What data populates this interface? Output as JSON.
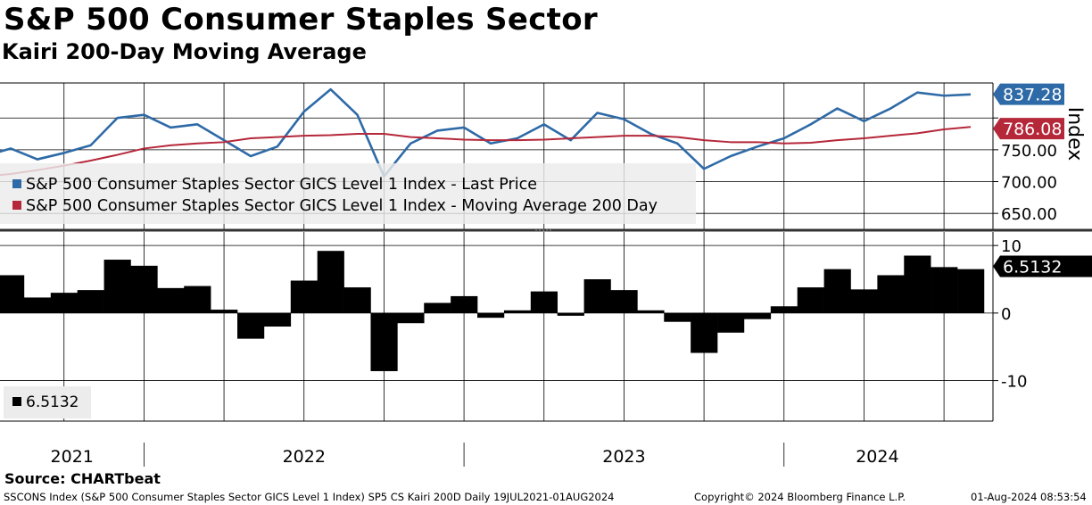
{
  "header": {
    "title": "S&P 500 Consumer Staples Sector",
    "subtitle": "Kairi 200-Day Moving Average"
  },
  "legend": {
    "price": "S&P 500 Consumer Staples Sector GICS Level 1 Index - Last Price",
    "ma": "S&P 500 Consumer Staples Sector GICS Level 1 Index - Moving Average 200 Day",
    "kairi": "6.5132"
  },
  "source": "Source: CHARTbeat",
  "footer": {
    "left": "SSCONS Index (S&P 500 Consumer Staples Sector GICS Level 1 Index) SP5 CS Kairi 200D  Daily 19JUL2021-01AUG2024",
    "center": "Copyright© 2024 Bloomberg Finance L.P.",
    "right": "01-Aug-2024 08:53:54"
  },
  "colors": {
    "price": "#2e6aa7",
    "ma": "#b5283a",
    "kairi": "#000000"
  },
  "chart_data": [
    {
      "type": "line",
      "ylabel": "Index",
      "ylim": [
        625,
        855
      ],
      "y_ticks": [
        "650.00",
        "700.00",
        "750.00"
      ],
      "x_labels": [
        "2021",
        "2022",
        "2023",
        "2024"
      ],
      "last_labels": {
        "price": "837.28",
        "ma": "786.08"
      },
      "x": [
        "2021-07",
        "2021-08",
        "2021-09",
        "2021-10",
        "2021-11",
        "2021-12",
        "2022-01",
        "2022-02",
        "2022-03",
        "2022-04",
        "2022-05",
        "2022-06",
        "2022-07",
        "2022-08",
        "2022-09",
        "2022-10",
        "2022-11",
        "2022-12",
        "2023-01",
        "2023-02",
        "2023-03",
        "2023-04",
        "2023-05",
        "2023-06",
        "2023-07",
        "2023-08",
        "2023-09",
        "2023-10",
        "2023-11",
        "2023-12",
        "2024-01",
        "2024-02",
        "2024-03",
        "2024-04",
        "2024-05",
        "2024-06",
        "2024-07",
        "2024-08"
      ],
      "series": [
        {
          "name": "S&P 500 Consumer Staples Sector GICS Level 1 Index - Last Price",
          "values": [
            740,
            752,
            735,
            745,
            757,
            800,
            805,
            785,
            790,
            765,
            740,
            755,
            810,
            845,
            805,
            708,
            760,
            780,
            785,
            760,
            768,
            790,
            765,
            808,
            798,
            775,
            760,
            720,
            740,
            755,
            768,
            790,
            815,
            795,
            815,
            840,
            835,
            837
          ]
        },
        {
          "name": "S&P 500 Consumer Staples Sector GICS Level 1 Index - Moving Average 200 Day",
          "values": [
            708,
            712,
            718,
            725,
            733,
            742,
            752,
            757,
            760,
            762,
            768,
            770,
            772,
            773,
            775,
            775,
            770,
            768,
            766,
            765,
            765,
            766,
            768,
            770,
            772,
            772,
            770,
            765,
            762,
            762,
            760,
            761,
            765,
            768,
            772,
            776,
            782,
            786
          ]
        }
      ]
    },
    {
      "type": "bar",
      "name": "Kairi 200D",
      "ylim": [
        -16,
        12
      ],
      "y_ticks": [
        "10",
        "0",
        "-10"
      ],
      "last_label": "6.5132",
      "x": [
        "2021-07",
        "2021-08",
        "2021-09",
        "2021-10",
        "2021-11",
        "2021-12",
        "2022-01",
        "2022-02",
        "2022-03",
        "2022-04",
        "2022-05",
        "2022-06",
        "2022-07",
        "2022-08",
        "2022-09",
        "2022-10",
        "2022-11",
        "2022-12",
        "2023-01",
        "2023-02",
        "2023-03",
        "2023-04",
        "2023-05",
        "2023-06",
        "2023-07",
        "2023-08",
        "2023-09",
        "2023-10",
        "2023-11",
        "2023-12",
        "2024-01",
        "2024-02",
        "2024-03",
        "2024-04",
        "2024-05",
        "2024-06",
        "2024-07",
        "2024-08"
      ],
      "values": [
        4.5,
        5.6,
        2.3,
        3.0,
        3.4,
        7.9,
        7.0,
        3.7,
        4.0,
        0.5,
        -3.8,
        -2.0,
        4.8,
        9.2,
        3.8,
        -8.6,
        -1.5,
        1.5,
        2.5,
        -0.7,
        0.4,
        3.2,
        -0.4,
        5.0,
        3.4,
        0.4,
        -1.3,
        -5.9,
        -2.9,
        -0.9,
        1.0,
        3.8,
        6.5,
        3.5,
        5.6,
        8.5,
        6.8,
        6.5
      ]
    }
  ]
}
